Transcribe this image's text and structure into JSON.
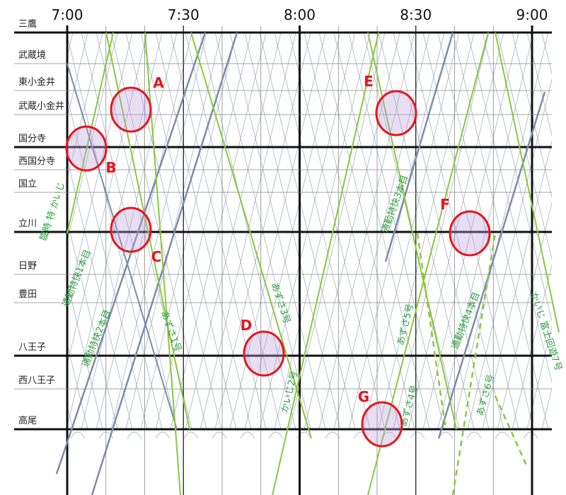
{
  "time_labels": [
    "7:00",
    "7:30",
    "8:00",
    "8:30",
    "9:00"
  ],
  "stations": [
    "三鷹",
    "武蔵境",
    "東小金井",
    "武蔵小金井",
    "国分寺",
    "西国分寺",
    "国立",
    "立川",
    "日野",
    "豊田",
    "八王子",
    "西八王子",
    "高尾"
  ],
  "trains": [
    {
      "label": "臨時 特 かいじ"
    },
    {
      "label": "通勤特快1本目"
    },
    {
      "label": "通勤特快2本目"
    },
    {
      "label": "あずさ1号"
    },
    {
      "label": "あずさ3号"
    },
    {
      "label": "かいじ2号"
    },
    {
      "label": "通勤特快3本目"
    },
    {
      "label": "あずさ5号"
    },
    {
      "label": "あずさ4号"
    },
    {
      "label": "通勤特快4本目"
    },
    {
      "label": "あずさ6号"
    },
    {
      "label": "かいじ 富士回遊7号"
    }
  ],
  "markers": [
    "A",
    "B",
    "C",
    "D",
    "E",
    "F",
    "G"
  ]
}
